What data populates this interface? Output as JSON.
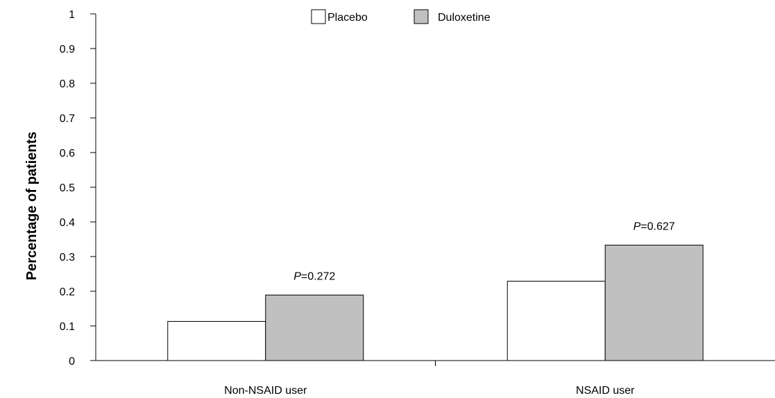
{
  "chart_data": {
    "type": "bar",
    "title": "",
    "xlabel": "",
    "ylabel": "Percentage of patients",
    "ylim": [
      0,
      1
    ],
    "yticks": [
      "0",
      "0.1",
      "0.2",
      "0.3",
      "0.4",
      "0.5",
      "0.6",
      "0.7",
      "0.8",
      "0.9",
      "1"
    ],
    "categories": [
      "Non-NSAID user",
      "NSAID user"
    ],
    "series": [
      {
        "name": "Placebo",
        "values": [
          0.113,
          0.229
        ],
        "color": "#ffffff"
      },
      {
        "name": "Duloxetine",
        "values": [
          0.189,
          0.333
        ],
        "color": "#c0c0c0"
      }
    ],
    "annotations": [
      {
        "prefix": "P",
        "text": "=0.272"
      },
      {
        "prefix": "P",
        "text": "=0.627"
      }
    ],
    "legend_position": "top-center",
    "grid": false
  }
}
